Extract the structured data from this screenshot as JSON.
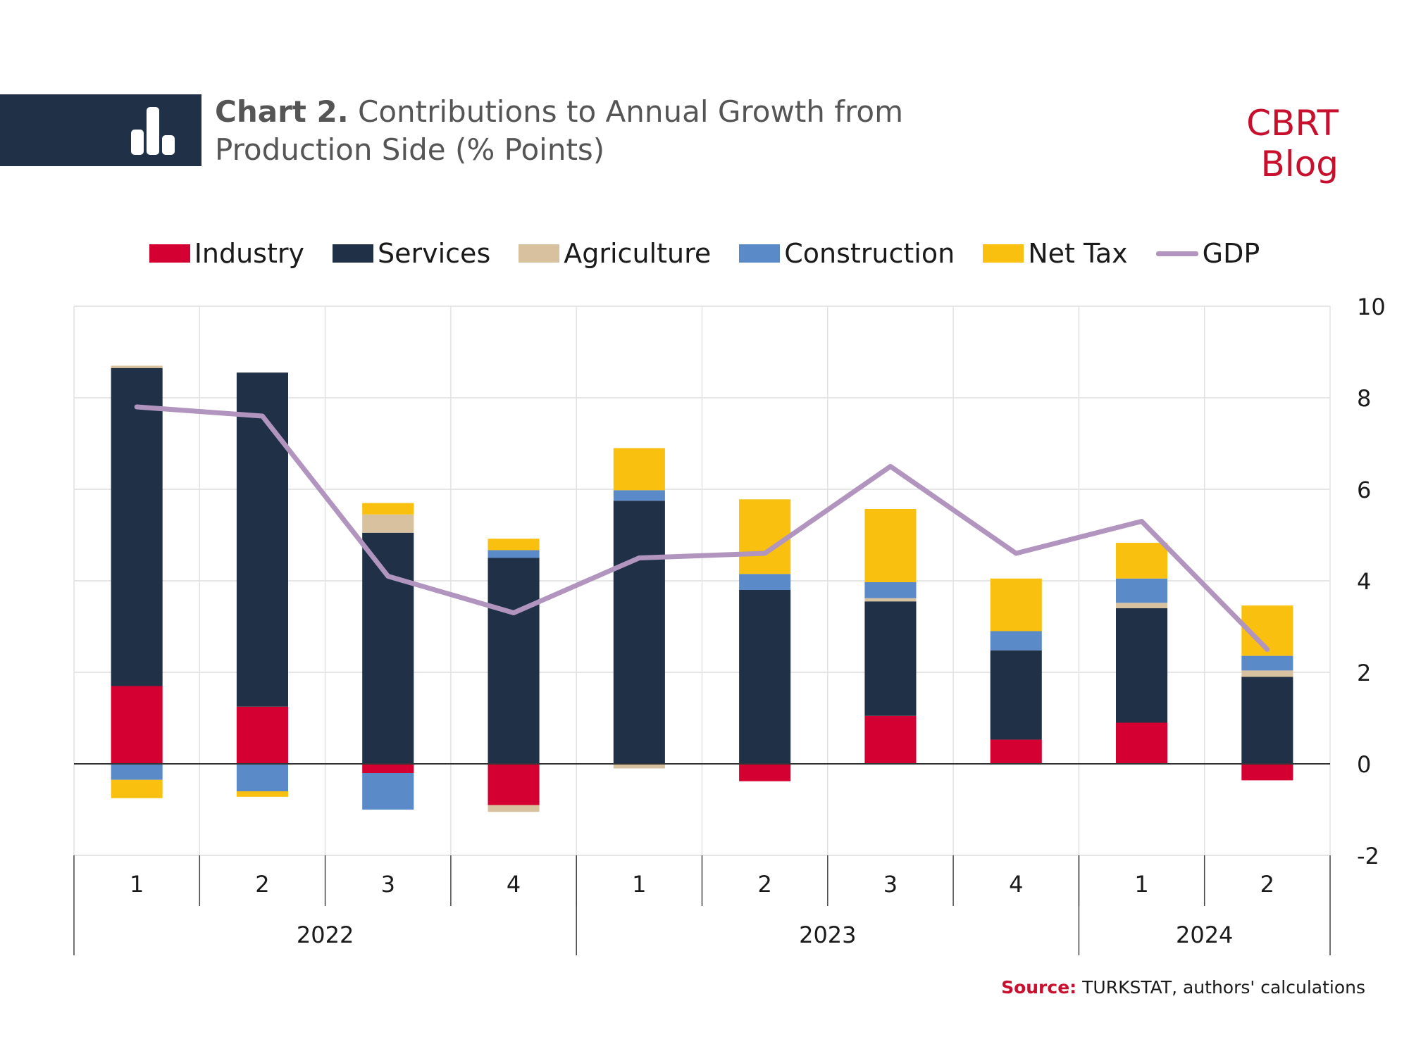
{
  "header": {
    "chart_label": "Chart 2.",
    "title_line1": "Contributions to Annual Growth from",
    "title_line2": "Production Side (% Points)",
    "brand": "CBRT Blog",
    "icon": "bar-chart-icon"
  },
  "source": {
    "label": "Source:",
    "text": "TURKSTAT, authors' calculations"
  },
  "colors": {
    "header_band": "#1f3047",
    "brand": "#c8102e"
  },
  "chart_data": {
    "type": "bar",
    "stacked": true,
    "categories": [
      "1",
      "2",
      "3",
      "4",
      "1",
      "2",
      "3",
      "4",
      "1",
      "2"
    ],
    "groups": [
      {
        "label": "2022",
        "count": 4
      },
      {
        "label": "2023",
        "count": 4
      },
      {
        "label": "2024",
        "count": 2
      }
    ],
    "series": [
      {
        "name": "Industry",
        "color": "#d50032",
        "values": [
          1.7,
          1.25,
          -0.2,
          -0.9,
          0.0,
          -0.38,
          1.05,
          0.53,
          0.9,
          -0.36
        ]
      },
      {
        "name": "Services",
        "color": "#1f3047",
        "values": [
          6.95,
          7.3,
          5.05,
          4.5,
          5.75,
          3.8,
          2.5,
          1.95,
          2.5,
          1.9
        ]
      },
      {
        "name": "Agriculture",
        "color": "#d8c19e",
        "values": [
          0.05,
          0.0,
          0.4,
          -0.15,
          -0.1,
          0.0,
          0.07,
          0.0,
          0.12,
          0.14
        ]
      },
      {
        "name": "Construction",
        "color": "#5b8ac9",
        "values": [
          -0.35,
          -0.6,
          -0.8,
          0.17,
          0.23,
          0.35,
          0.35,
          0.42,
          0.53,
          0.32
        ]
      },
      {
        "name": "Net Tax",
        "color": "#f9c00f",
        "values": [
          -0.4,
          -0.12,
          0.25,
          0.25,
          0.92,
          1.63,
          1.6,
          1.15,
          0.78,
          1.1
        ]
      }
    ],
    "line": {
      "name": "GDP",
      "color": "#b195be",
      "values": [
        7.8,
        7.6,
        4.1,
        3.3,
        4.5,
        4.6,
        6.5,
        4.6,
        5.3,
        2.5
      ]
    },
    "ylim": [
      -2,
      10
    ],
    "yticks": [
      -2,
      0,
      2,
      4,
      6,
      8,
      10
    ],
    "y_axis_position": "right",
    "grid": true,
    "legend_position": "top"
  }
}
